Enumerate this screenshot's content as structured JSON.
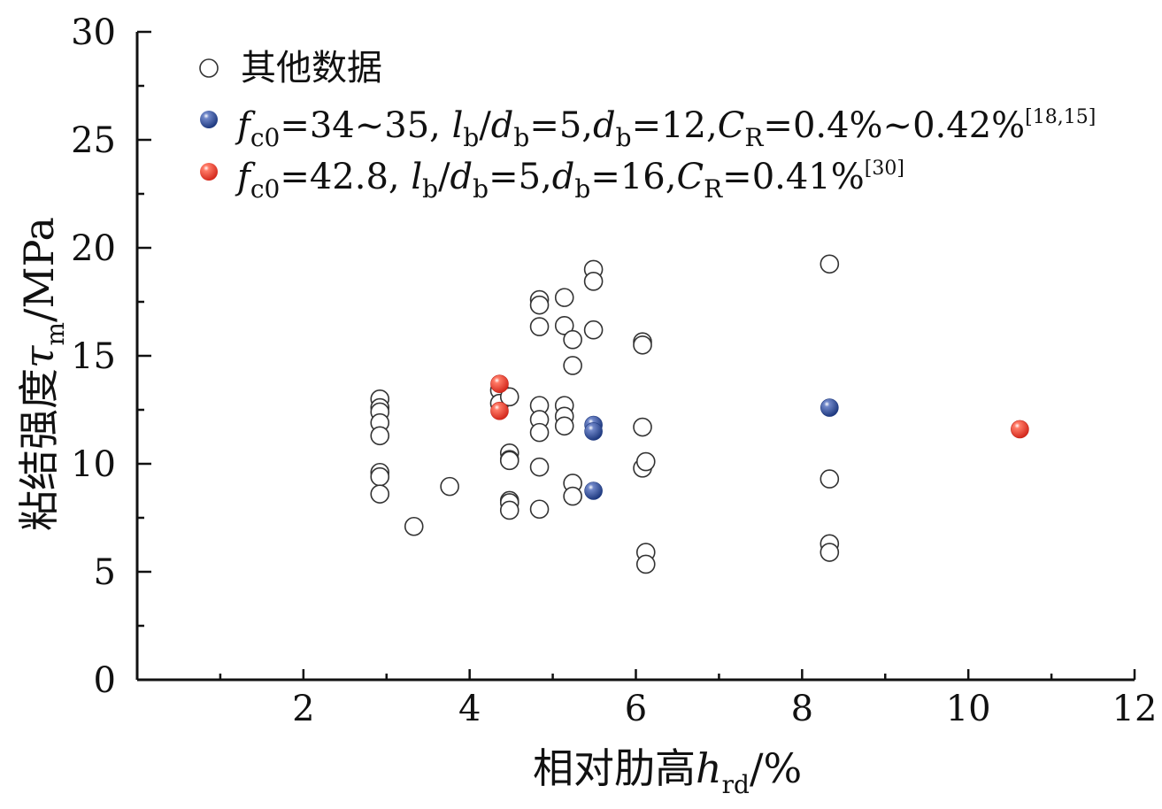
{
  "chart_data": {
    "type": "scatter",
    "xlabel": {
      "main": "相对肋高",
      "var": "h",
      "sub": "rd",
      "unit": "/%"
    },
    "ylabel": {
      "main": "粘结强度",
      "var": "τ",
      "sub": "m",
      "unit": "/MPa"
    },
    "xlim": [
      0,
      12
    ],
    "ylim": [
      0,
      30
    ],
    "x_ticks": [
      2,
      4,
      6,
      8,
      10,
      12
    ],
    "y_ticks": [
      0,
      5,
      10,
      15,
      20,
      25,
      30
    ],
    "grid": false,
    "legend_position": "top-left",
    "colors": {
      "other": "#ffffff",
      "blue": "#2f4f9a",
      "red": "#e03c30",
      "edge": "#333333"
    },
    "series": [
      {
        "name": "其他数据",
        "style": "hollow",
        "points": [
          [
            2.92,
            13.0
          ],
          [
            2.92,
            12.6
          ],
          [
            2.92,
            12.4
          ],
          [
            2.92,
            11.9
          ],
          [
            2.92,
            11.3
          ],
          [
            2.92,
            9.6
          ],
          [
            2.92,
            9.4
          ],
          [
            2.92,
            8.6
          ],
          [
            3.33,
            7.1
          ],
          [
            3.76,
            8.95
          ],
          [
            4.36,
            13.4
          ],
          [
            4.36,
            12.8
          ],
          [
            4.48,
            13.1
          ],
          [
            4.48,
            10.5
          ],
          [
            4.48,
            10.2
          ],
          [
            4.48,
            10.15
          ],
          [
            4.48,
            8.3
          ],
          [
            4.48,
            8.2
          ],
          [
            4.48,
            7.85
          ],
          [
            4.84,
            17.6
          ],
          [
            4.84,
            17.35
          ],
          [
            4.84,
            16.35
          ],
          [
            4.84,
            12.7
          ],
          [
            4.84,
            12.05
          ],
          [
            4.84,
            11.45
          ],
          [
            4.84,
            9.85
          ],
          [
            4.84,
            7.9
          ],
          [
            5.14,
            17.7
          ],
          [
            5.14,
            16.4
          ],
          [
            5.14,
            12.7
          ],
          [
            5.14,
            12.2
          ],
          [
            5.14,
            11.75
          ],
          [
            5.24,
            15.75
          ],
          [
            5.24,
            14.55
          ],
          [
            5.24,
            9.1
          ],
          [
            5.24,
            8.5
          ],
          [
            5.49,
            19.0
          ],
          [
            5.49,
            18.45
          ],
          [
            5.49,
            16.2
          ],
          [
            6.08,
            15.65
          ],
          [
            6.08,
            15.5
          ],
          [
            6.08,
            11.7
          ],
          [
            6.08,
            9.8
          ],
          [
            6.12,
            10.1
          ],
          [
            6.12,
            5.9
          ],
          [
            6.12,
            5.35
          ],
          [
            8.33,
            19.25
          ],
          [
            8.33,
            9.3
          ],
          [
            8.33,
            6.3
          ],
          [
            8.33,
            5.9
          ]
        ]
      },
      {
        "style": "blue",
        "label": {
          "f_sub": "c0",
          "f_val": "=34~35, ",
          "lb_val": "=5,",
          "db_val": "=12,",
          "cr_val": "=0.4%~0.42%",
          "ref": "[18,15]"
        },
        "points": [
          [
            5.49,
            11.8
          ],
          [
            5.49,
            11.5
          ],
          [
            5.49,
            8.75
          ],
          [
            8.33,
            12.6
          ]
        ]
      },
      {
        "style": "red",
        "label": {
          "f_sub": "c0",
          "f_val": "=42.8, ",
          "lb_val": "=5,",
          "db_val": "=16,",
          "cr_val": "=0.41%",
          "ref": "[30]"
        },
        "points": [
          [
            4.36,
            13.7
          ],
          [
            4.36,
            12.45
          ],
          [
            10.62,
            11.6
          ]
        ]
      }
    ]
  }
}
